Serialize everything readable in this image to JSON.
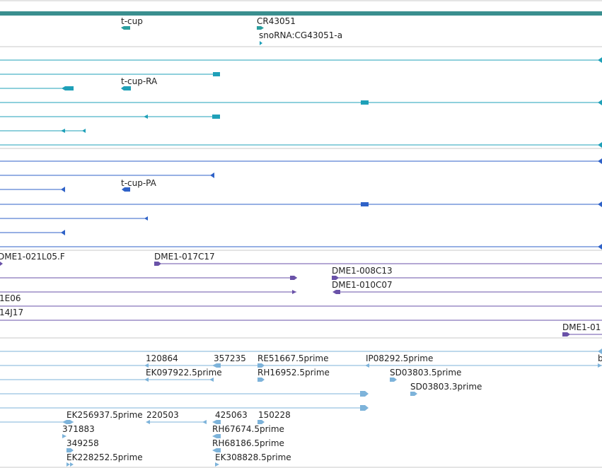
{
  "colors": {
    "background": "#ffffff",
    "divider": "#c8c8c8",
    "top_bar": "#3a8f8f",
    "gene": "#2a9e9e",
    "transcript": "#1fa0b8",
    "protein": "#2f62c8",
    "clone": "#6a52a8",
    "est": "#7db3da"
  },
  "tracks": {
    "genes": {
      "labels": [
        "t-cup",
        "CR43051",
        "snoRNA:CG43051-a"
      ]
    },
    "transcripts": {
      "labels": [
        "t-cup-RA"
      ]
    },
    "proteins": {
      "labels": [
        "t-cup-PA"
      ]
    },
    "clones": {
      "labels": [
        "DME1-021L05.F",
        "DME1-017C17",
        "DME1-008C13",
        "DME1-010C07",
        "1E06",
        "14J17",
        "DME1-01"
      ]
    },
    "ests": {
      "labels": [
        "120864",
        "357235",
        "RE51667.5prime",
        "IP08292.5prime",
        "b",
        "EK097922.5prime",
        "RH16952.5prime",
        "SD03803.5prime",
        "SD03803.3prime",
        "EK256937.5prime",
        "220503",
        "425063",
        "150228",
        "371883",
        "RH67674.5prime",
        "349258",
        "RH68186.5prime",
        "EK228252.5prime",
        "EK308828.5prime"
      ]
    }
  }
}
